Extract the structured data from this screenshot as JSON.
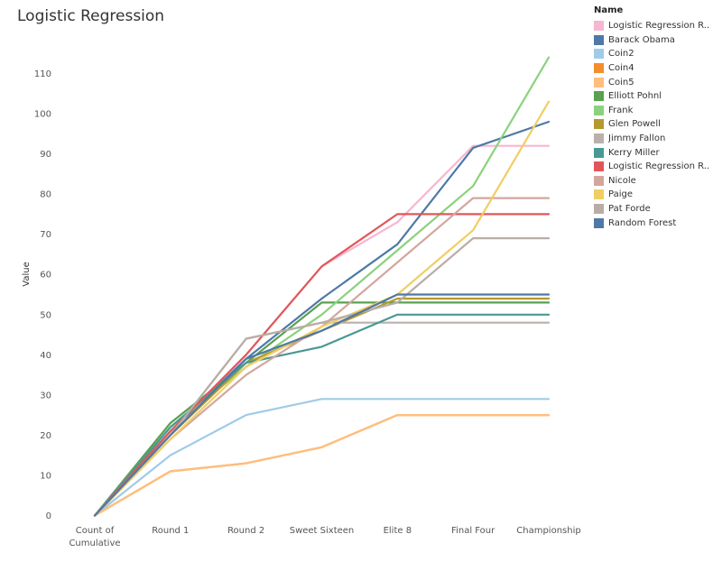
{
  "chart_data": {
    "type": "line",
    "title": "Logistic Regression",
    "xlabel": "",
    "ylabel": "Value",
    "ylim": [
      0,
      116
    ],
    "yticks": [
      0,
      10,
      20,
      30,
      40,
      50,
      60,
      70,
      80,
      90,
      100,
      110
    ],
    "categories": [
      "Count of Cumulative",
      "Round 1",
      "Round 2",
      "Sweet Sixteen",
      "Elite 8",
      "Final Four",
      "Championship"
    ],
    "category_labels": [
      [
        "Count of",
        "Cumulative"
      ],
      [
        "Round 1"
      ],
      [
        "Round 2"
      ],
      [
        "Sweet Sixteen"
      ],
      [
        "Elite 8"
      ],
      [
        "Final Four"
      ],
      [
        "Championship"
      ]
    ],
    "grid": false,
    "legend": {
      "title": "Name",
      "position": "right"
    },
    "series": [
      {
        "name": "Logistic Regression R..",
        "color": "#f7b6d2",
        "values": [
          0,
          21,
          40,
          62,
          73,
          92,
          92
        ]
      },
      {
        "name": "Barack Obama",
        "color": "#4e79a7",
        "values": [
          0,
          21,
          39,
          54,
          67.5,
          91.5,
          98
        ]
      },
      {
        "name": "Coin2",
        "color": "#a0cbe8",
        "values": [
          0,
          15,
          25,
          29,
          29,
          29,
          29
        ]
      },
      {
        "name": "Coin4",
        "color": "#f28e2b",
        "values": [
          0,
          11,
          13,
          17,
          25,
          25,
          25
        ]
      },
      {
        "name": "Coin5",
        "color": "#ffbe7d",
        "values": [
          0,
          11,
          13,
          17,
          25,
          25,
          25
        ]
      },
      {
        "name": "Elliott Pohnl",
        "color": "#59a14f",
        "values": [
          0,
          23,
          38,
          53,
          53,
          53,
          53
        ]
      },
      {
        "name": "Frank",
        "color": "#8cd17d",
        "values": [
          0,
          22,
          37,
          50,
          66,
          82,
          114
        ]
      },
      {
        "name": "Glen Powell",
        "color": "#b6992d",
        "values": [
          0,
          20,
          38,
          46,
          54,
          54,
          54
        ]
      },
      {
        "name": "Jimmy Fallon",
        "color": "#bab0ac",
        "values": [
          0,
          20,
          44,
          48,
          48,
          48,
          48
        ]
      },
      {
        "name": "Kerry Miller",
        "color": "#499894",
        "values": [
          0,
          22,
          38,
          42,
          50,
          50,
          50
        ]
      },
      {
        "name": "Logistic Regression R..",
        "color": "#e15759",
        "values": [
          0,
          21,
          40,
          62,
          75,
          75,
          75
        ]
      },
      {
        "name": "Nicole",
        "color": "#d4a6a0",
        "values": [
          0,
          19,
          35,
          47,
          63,
          79,
          79
        ]
      },
      {
        "name": "Paige",
        "color": "#f1ce63",
        "values": [
          0,
          19,
          37,
          47,
          55,
          71,
          103
        ]
      },
      {
        "name": "Pat Forde",
        "color": "#b9ada6",
        "values": [
          0,
          20,
          44,
          48,
          53,
          69,
          69
        ]
      },
      {
        "name": "Random Forest",
        "color": "#4e79a7",
        "values": [
          0,
          20,
          39,
          46,
          55,
          55,
          55
        ]
      }
    ]
  }
}
